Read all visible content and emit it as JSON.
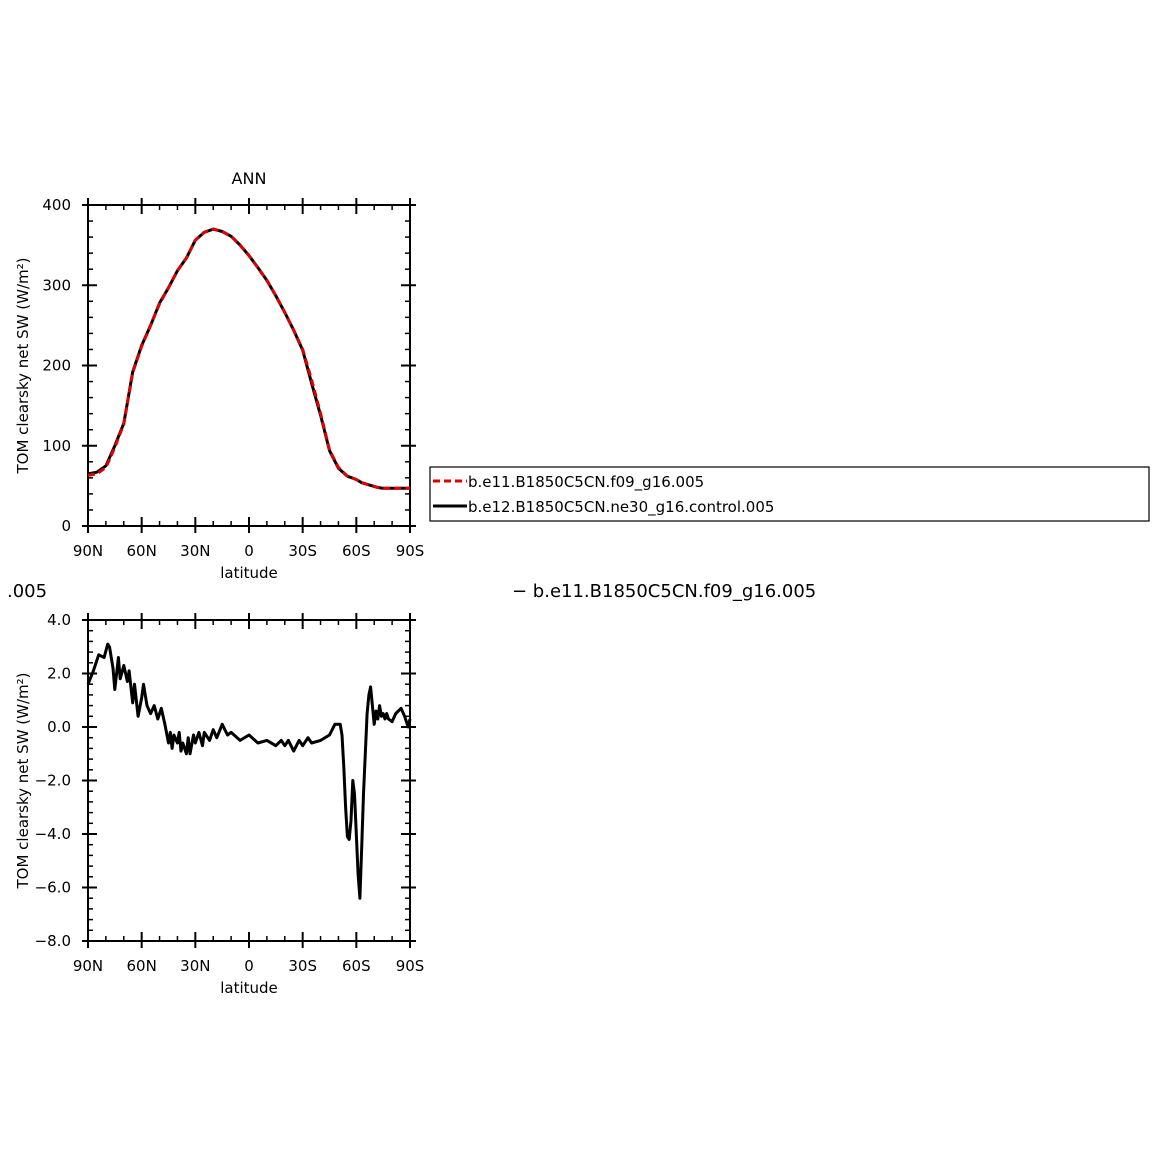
{
  "page": {
    "title_left_fragment": ".005",
    "title_right_fragment": "− b.e11.B1850C5CN.f09_g16.005"
  },
  "colors": {
    "series_red": "#e00000",
    "series_black": "#000000"
  },
  "chart_data": [
    {
      "type": "line",
      "title": "ANN",
      "xlabel": "latitude",
      "ylabel": "TOM clearsky net SW (W/m²)",
      "xlim": [
        90,
        -90
      ],
      "ylim": [
        0,
        400
      ],
      "xticks": [
        90,
        60,
        30,
        0,
        -30,
        -60,
        -90
      ],
      "xtick_labels": [
        "90N",
        "60N",
        "30N",
        "0",
        "30S",
        "60S",
        "90S"
      ],
      "yticks": [
        0,
        100,
        200,
        300,
        400
      ],
      "ytick_labels": [
        "0",
        "100",
        "200",
        "300",
        "400"
      ],
      "legend": {
        "placement": "right of plot",
        "entries": [
          "b.e11.B1850C5CN.f09_g16.005",
          "b.e12.B1850C5CN.ne30_g16.control.005"
        ]
      },
      "series": [
        {
          "name": "b.e12.B1850C5CN.ne30_g16.control.005",
          "color": "#000000",
          "dash": "solid",
          "x": [
            90,
            85,
            80,
            75,
            70,
            65,
            60,
            55,
            50,
            45,
            40,
            35,
            30,
            25,
            20,
            15,
            10,
            5,
            0,
            -5,
            -10,
            -15,
            -20,
            -25,
            -30,
            -35,
            -40,
            -45,
            -50,
            -55,
            -60,
            -63,
            -66,
            -69,
            -72,
            -75,
            -78,
            -81,
            -84,
            -87,
            -90
          ],
          "y": [
            65,
            67,
            75,
            100,
            128,
            192,
            225,
            250,
            278,
            297,
            318,
            334,
            356,
            366,
            370,
            367,
            361,
            350,
            337,
            322,
            306,
            287,
            266,
            244,
            219,
            178,
            138,
            94,
            72,
            62,
            58,
            54,
            52,
            50,
            48,
            47,
            47,
            47,
            47,
            47,
            47
          ]
        },
        {
          "name": "b.e11.B1850C5CN.f09_g16.005",
          "color": "#e00000",
          "dash": "dashed",
          "x": [
            90,
            85,
            80,
            75,
            70,
            65,
            60,
            55,
            50,
            45,
            40,
            35,
            30,
            25,
            20,
            15,
            10,
            5,
            0,
            -5,
            -10,
            -15,
            -20,
            -25,
            -30,
            -35,
            -40,
            -45,
            -50,
            -55,
            -60,
            -63,
            -66,
            -69,
            -72,
            -75,
            -78,
            -81,
            -84,
            -87,
            -90
          ],
          "y": [
            63,
            65,
            73,
            98,
            127,
            191,
            224,
            250,
            277,
            297,
            318,
            334,
            356,
            366,
            370,
            367,
            361,
            350,
            337,
            322,
            306,
            287,
            266,
            244,
            220,
            182,
            140,
            95,
            73,
            62,
            58,
            54,
            52,
            50,
            48,
            47,
            47,
            47,
            47,
            47,
            47
          ]
        }
      ]
    },
    {
      "type": "line",
      "title": "",
      "xlabel": "latitude",
      "ylabel": "TOM clearsky net SW (W/m²)",
      "xlim": [
        90,
        -90
      ],
      "ylim": [
        -8,
        4
      ],
      "xticks": [
        90,
        60,
        30,
        0,
        -30,
        -60,
        -90
      ],
      "xtick_labels": [
        "90N",
        "60N",
        "30N",
        "0",
        "30S",
        "60S",
        "90S"
      ],
      "yticks": [
        4,
        2,
        0,
        -2,
        -4,
        -6,
        -8
      ],
      "ytick_labels": [
        "4.0",
        "2.0",
        "0.0",
        "−2.0",
        "−4.0",
        "−6.0",
        "−8.0"
      ],
      "series": [
        {
          "color": "#000000",
          "dash": "solid",
          "x": [
            90,
            87,
            84,
            81,
            79,
            78,
            76,
            75,
            73,
            72,
            70,
            68,
            67,
            65,
            64,
            62,
            60,
            59,
            57,
            55,
            53,
            51,
            49,
            47,
            45,
            44,
            43,
            42,
            40,
            39,
            38,
            37,
            35,
            34,
            33,
            31,
            30,
            28,
            26,
            25,
            22,
            20,
            18,
            15,
            12,
            10,
            5,
            0,
            -5,
            -10,
            -15,
            -18,
            -20,
            -22,
            -25,
            -28,
            -30,
            -33,
            -35,
            -40,
            -45,
            -48,
            -50,
            -51,
            -52,
            -53,
            -54,
            -55,
            -56,
            -57,
            -58,
            -59,
            -60,
            -61,
            -62,
            -63,
            -64,
            -65,
            -66,
            -67,
            -68,
            -69,
            -70,
            -71,
            -72,
            -73,
            -74,
            -75,
            -76,
            -77,
            -78,
            -80,
            -82,
            -85,
            -87,
            -89,
            -90
          ],
          "y": [
            1.6,
            2.1,
            2.7,
            2.6,
            3.1,
            3.0,
            2.2,
            1.4,
            2.6,
            1.8,
            2.3,
            1.7,
            2.1,
            0.9,
            1.6,
            0.4,
            1.1,
            1.6,
            0.8,
            0.5,
            0.8,
            0.3,
            0.7,
            0.1,
            -0.6,
            -0.2,
            -0.8,
            -0.3,
            -0.6,
            -0.2,
            -0.9,
            -0.6,
            -1.0,
            -0.4,
            -1.0,
            -0.3,
            -0.6,
            -0.2,
            -0.7,
            -0.2,
            -0.5,
            -0.1,
            -0.4,
            0.1,
            -0.3,
            -0.2,
            -0.5,
            -0.3,
            -0.6,
            -0.5,
            -0.7,
            -0.5,
            -0.7,
            -0.5,
            -0.9,
            -0.5,
            -0.7,
            -0.4,
            -0.6,
            -0.5,
            -0.3,
            0.1,
            0.1,
            0.1,
            -0.3,
            -1.5,
            -3.0,
            -4.1,
            -4.2,
            -3.5,
            -2.0,
            -2.5,
            -4.0,
            -5.5,
            -6.4,
            -4.5,
            -2.5,
            -1.0,
            0.5,
            1.2,
            1.5,
            0.8,
            0.1,
            0.6,
            0.3,
            0.8,
            0.4,
            0.5,
            0.3,
            0.5,
            0.3,
            0.2,
            0.5,
            0.7,
            0.4,
            0.0,
            0.3
          ]
        }
      ]
    }
  ]
}
